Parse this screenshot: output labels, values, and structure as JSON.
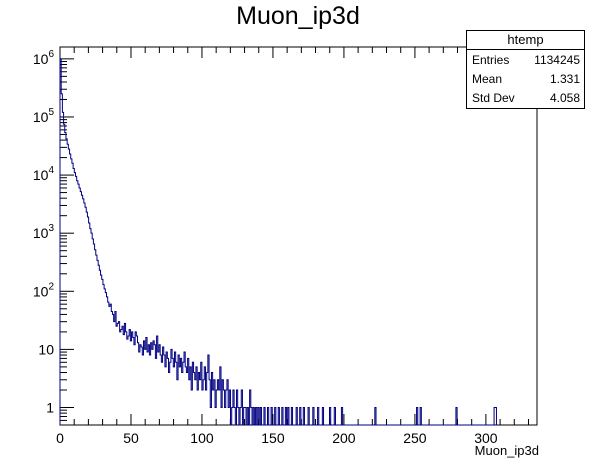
{
  "chart_data": {
    "type": "histogram",
    "title": "Muon_ip3d",
    "xlabel": "Muon_ip3d",
    "ylabel": "",
    "xlim": [
      0,
      336
    ],
    "ylim": [
      0.5,
      1600000
    ],
    "yscale": "log",
    "grid": false,
    "line_color": "#000080",
    "x_ticks": [
      0,
      50,
      100,
      150,
      200,
      250,
      300
    ],
    "y_ticks": [
      {
        "value": 1,
        "mant": "1",
        "exp": ""
      },
      {
        "value": 10,
        "mant": "10",
        "exp": ""
      },
      {
        "value": 100,
        "mant": "10",
        "exp": "2"
      },
      {
        "value": 1000,
        "mant": "10",
        "exp": "3"
      },
      {
        "value": 10000,
        "mant": "10",
        "exp": "4"
      },
      {
        "value": 100000,
        "mant": "10",
        "exp": "5"
      },
      {
        "value": 1000000,
        "mant": "10",
        "exp": "6"
      }
    ],
    "stats": {
      "title": "htemp",
      "rows": [
        {
          "label": "Entries",
          "value": "1134245"
        },
        {
          "label": "Mean",
          "value": "1.331"
        },
        {
          "label": "Std Dev",
          "value": "4.058"
        }
      ]
    },
    "bin_width": 0.84,
    "bins": [
      [
        0,
        1000000
      ],
      [
        0.84,
        250000
      ],
      [
        1.68,
        120000
      ],
      [
        2.52,
        75000
      ],
      [
        3.36,
        54000
      ],
      [
        4.2,
        42000
      ],
      [
        5.04,
        34000
      ],
      [
        5.88,
        28000
      ],
      [
        6.72,
        23000
      ],
      [
        7.56,
        19000
      ],
      [
        8.4,
        16000
      ],
      [
        9.24,
        13000
      ],
      [
        10.08,
        11000
      ],
      [
        10.92,
        9500
      ],
      [
        11.76,
        8000
      ],
      [
        12.6,
        7000
      ],
      [
        13.44,
        6000
      ],
      [
        14.28,
        5200
      ],
      [
        15.12,
        4500
      ],
      [
        15.96,
        3900
      ],
      [
        16.8,
        3300
      ],
      [
        17.64,
        2800
      ],
      [
        18.48,
        2300
      ],
      [
        19.32,
        1900
      ],
      [
        20.16,
        1500
      ],
      [
        21,
        1200
      ],
      [
        21.84,
        1000
      ],
      [
        22.68,
        800
      ],
      [
        23.52,
        650
      ],
      [
        24.36,
        520
      ],
      [
        25.2,
        420
      ],
      [
        26.04,
        340
      ],
      [
        26.88,
        280
      ],
      [
        27.72,
        230
      ],
      [
        28.56,
        190
      ],
      [
        29.4,
        160
      ],
      [
        30.24,
        130
      ],
      [
        31.08,
        110
      ],
      [
        31.92,
        95
      ],
      [
        32.76,
        80
      ],
      [
        33.6,
        65
      ],
      [
        34.44,
        55
      ],
      [
        35.28,
        60
      ],
      [
        36.12,
        45
      ],
      [
        36.96,
        40
      ],
      [
        37.8,
        30
      ],
      [
        38.64,
        45
      ],
      [
        39.48,
        25
      ],
      [
        40.32,
        28
      ],
      [
        41.16,
        30
      ],
      [
        42,
        20
      ],
      [
        42.84,
        22
      ],
      [
        43.68,
        25
      ],
      [
        44.52,
        18
      ],
      [
        45.36,
        28
      ],
      [
        46.2,
        20
      ],
      [
        47.04,
        15
      ],
      [
        47.88,
        17
      ],
      [
        48.72,
        22
      ],
      [
        49.56,
        14
      ],
      [
        50.4,
        20
      ],
      [
        51.24,
        16
      ],
      [
        52.08,
        12
      ],
      [
        52.92,
        20
      ],
      [
        53.76,
        17
      ],
      [
        54.6,
        13
      ],
      [
        55.44,
        9
      ],
      [
        56.28,
        12
      ],
      [
        57.12,
        11
      ],
      [
        57.96,
        8
      ],
      [
        58.8,
        14
      ],
      [
        59.64,
        10
      ],
      [
        60.48,
        16
      ],
      [
        61.32,
        9
      ],
      [
        62.16,
        12
      ],
      [
        63,
        8
      ],
      [
        63.84,
        13
      ],
      [
        64.68,
        10
      ],
      [
        65.52,
        14
      ],
      [
        66.36,
        12
      ],
      [
        67.2,
        7
      ],
      [
        68.04,
        17
      ],
      [
        68.88,
        9
      ],
      [
        69.72,
        12
      ],
      [
        70.56,
        8
      ],
      [
        71.4,
        6
      ],
      [
        72.24,
        11
      ],
      [
        73.08,
        8
      ],
      [
        73.92,
        5
      ],
      [
        74.76,
        9
      ],
      [
        75.6,
        7
      ],
      [
        76.44,
        4
      ],
      [
        77.28,
        6
      ],
      [
        78.12,
        10
      ],
      [
        78.96,
        7
      ],
      [
        79.8,
        5
      ],
      [
        80.64,
        9
      ],
      [
        81.48,
        6
      ],
      [
        82.32,
        3
      ],
      [
        83.16,
        8
      ],
      [
        84,
        5
      ],
      [
        84.84,
        7
      ],
      [
        85.68,
        4
      ],
      [
        86.52,
        6
      ],
      [
        87.36,
        9
      ],
      [
        88.2,
        5
      ],
      [
        89.04,
        4
      ],
      [
        89.88,
        7
      ],
      [
        90.72,
        3
      ],
      [
        91.56,
        5
      ],
      [
        92.4,
        2
      ],
      [
        93.24,
        6
      ],
      [
        94.08,
        4
      ],
      [
        94.92,
        3
      ],
      [
        95.76,
        5
      ],
      [
        96.6,
        2
      ],
      [
        97.44,
        4
      ],
      [
        98.28,
        3
      ],
      [
        99.12,
        6
      ],
      [
        99.96,
        2
      ],
      [
        100.8,
        3
      ],
      [
        101.64,
        5
      ],
      [
        102.48,
        2
      ],
      [
        103.32,
        4
      ],
      [
        104.16,
        8
      ],
      [
        105,
        3
      ],
      [
        105.84,
        1
      ],
      [
        106.68,
        4
      ],
      [
        107.52,
        2
      ],
      [
        108.36,
        3
      ],
      [
        109.2,
        1
      ],
      [
        110.04,
        2
      ],
      [
        110.88,
        3
      ],
      [
        111.72,
        2
      ],
      [
        112.56,
        5
      ],
      [
        113.4,
        1
      ],
      [
        114.24,
        3
      ],
      [
        115.08,
        2
      ],
      [
        115.92,
        1
      ],
      [
        116.76,
        2
      ],
      [
        117.6,
        3
      ],
      [
        118.44,
        1
      ],
      [
        119.28,
        2
      ],
      [
        120.96,
        1
      ],
      [
        121.8,
        2
      ],
      [
        122.64,
        1
      ],
      [
        124.32,
        2
      ],
      [
        125.16,
        1
      ],
      [
        126.84,
        1
      ],
      [
        127.68,
        2
      ],
      [
        129.36,
        1
      ],
      [
        130.2,
        1
      ],
      [
        131.88,
        1
      ],
      [
        133.56,
        2
      ],
      [
        134.4,
        1
      ],
      [
        136.08,
        1
      ],
      [
        137.76,
        1
      ],
      [
        139.44,
        1
      ],
      [
        141.12,
        1
      ],
      [
        143.64,
        1
      ],
      [
        146.16,
        1
      ],
      [
        148.68,
        1
      ],
      [
        151.2,
        1
      ],
      [
        153.72,
        1
      ],
      [
        156.24,
        1
      ],
      [
        158.76,
        1
      ],
      [
        160.44,
        1
      ],
      [
        162.96,
        1
      ],
      [
        166.32,
        1
      ],
      [
        168.84,
        1
      ],
      [
        171.36,
        1
      ],
      [
        174.72,
        1
      ],
      [
        178.08,
        1
      ],
      [
        181.44,
        1
      ],
      [
        184.8,
        1
      ],
      [
        189.84,
        1
      ],
      [
        193.2,
        1
      ],
      [
        198.24,
        1
      ],
      [
        221.76,
        1
      ],
      [
        251.16,
        1
      ],
      [
        253.68,
        1
      ],
      [
        278.88,
        1
      ],
      [
        305.76,
        1
      ],
      [
        306.6,
        1
      ]
    ]
  }
}
